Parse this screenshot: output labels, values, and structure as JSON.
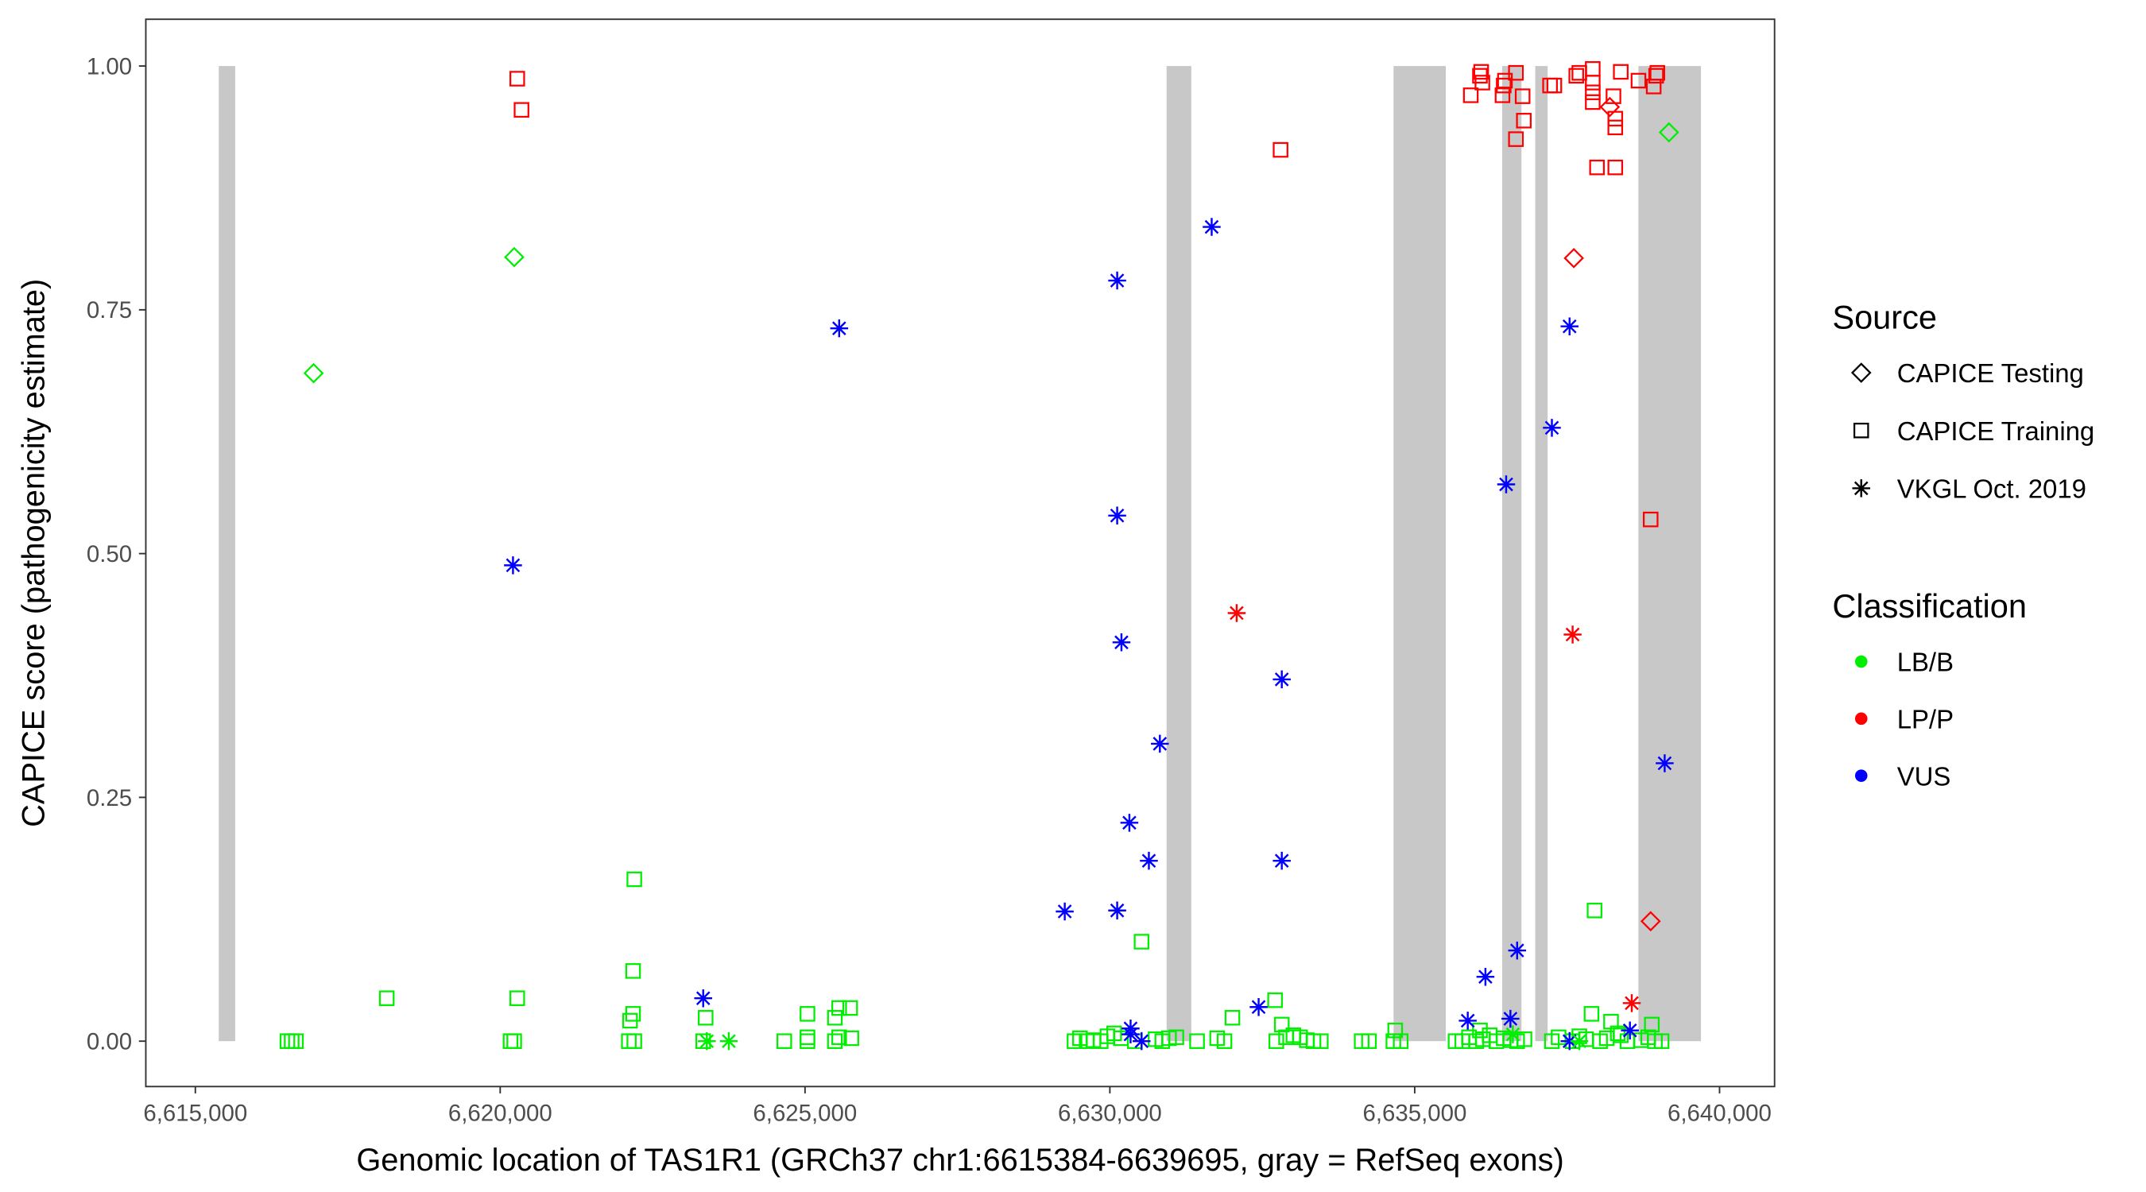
{
  "chart_data": {
    "type": "scatter",
    "xlabel": "Genomic location of TAS1R1 (GRCh37 chr1:6615384-6639695, gray = RefSeq exons)",
    "ylabel": "CAPICE score (pathogenicity estimate)",
    "xlim": [
      6614200,
      6640900
    ],
    "ylim": [
      -0.045,
      1.05
    ],
    "x_ticks": [
      6615000,
      6620000,
      6625000,
      6630000,
      6635000,
      6640000
    ],
    "x_tick_labels": [
      "6,615,000",
      "6,620,000",
      "6,625,000",
      "6,630,000",
      "6,635,000",
      "6,640,000"
    ],
    "y_ticks": [
      0,
      0.25,
      0.5,
      0.75,
      1.0
    ],
    "y_tick_labels": [
      "0.00",
      "0.25",
      "0.50",
      "0.75",
      "1.00"
    ],
    "grid": false,
    "exons": [
      [
        6615384,
        6615654
      ],
      [
        6630930,
        6631336
      ],
      [
        6634653,
        6635510
      ],
      [
        6636435,
        6636751
      ],
      [
        6636977,
        6637180
      ],
      [
        6638669,
        6639695
      ]
    ],
    "exon_color": "#c8c8c8",
    "legend": {
      "placement": "right",
      "source_title": "Source",
      "sources": [
        {
          "label": "CAPICE Testing",
          "shape": "diamond"
        },
        {
          "label": "CAPICE Training",
          "shape": "square"
        },
        {
          "label": "VKGL Oct. 2019",
          "shape": "asterisk"
        }
      ],
      "classification_title": "Classification",
      "classifications": [
        {
          "label": "LB/B",
          "color": "#00ee00"
        },
        {
          "label": "LP/P",
          "color": "#ff0000"
        },
        {
          "label": "VUS",
          "color": "#0000ff"
        }
      ]
    },
    "series": [
      {
        "source": "CAPICE Testing",
        "classification": "LB/B",
        "x": [
          6616940,
          6620230,
          6639170
        ],
        "y": [
          0.685,
          0.804,
          0.932
        ]
      },
      {
        "source": "CAPICE Testing",
        "classification": "LP/P",
        "x": [
          6638200,
          6637610,
          6638870
        ],
        "y": [
          0.958,
          0.803,
          0.123
        ]
      },
      {
        "source": "CAPICE Training",
        "classification": "LP/P",
        "x": [
          6620280,
          6620350,
          6632800,
          6635920,
          6636070,
          6636090,
          6636110,
          6636440,
          6636460,
          6636480,
          6636660,
          6636770,
          6636790,
          6636660,
          6637220,
          6637290,
          6637650,
          6637700,
          6637920,
          6637920,
          6637920,
          6637920,
          6638260,
          6638290,
          6638290,
          6637990,
          6638290,
          6638380,
          6638670,
          6638980,
          6638960,
          6638920,
          6638870
        ],
        "y": [
          0.987,
          0.955,
          0.914,
          0.97,
          0.99,
          0.994,
          0.983,
          0.97,
          0.98,
          0.985,
          0.993,
          0.969,
          0.944,
          0.925,
          0.98,
          0.98,
          0.99,
          0.993,
          0.997,
          0.983,
          0.973,
          0.963,
          0.969,
          0.946,
          0.937,
          0.896,
          0.896,
          0.994,
          0.985,
          0.993,
          0.99,
          0.979,
          0.535
        ]
      },
      {
        "source": "CAPICE Training",
        "classification": "LB/B",
        "x": [
          6616510,
          6616580,
          6616650,
          6618140,
          6620280,
          6620170,
          6620230,
          6622200,
          6622180,
          6622180,
          6622130,
          6622110,
          6622200,
          6623370,
          6623330,
          6624660,
          6625040,
          6625040,
          6625040,
          6625490,
          6625560,
          6625740,
          6625490,
          6625560,
          6625760,
          6630520,
          6632010,
          6632710,
          6632820,
          6629420,
          6629510,
          6629620,
          6629730,
          6629850,
          6629960,
          6630070,
          6630180,
          6630410,
          6630750,
          6630860,
          6630970,
          6631090,
          6631430,
          6631760,
          6631880,
          6632730,
          6632890,
          6633010,
          6633120,
          6633230,
          6633340,
          6633460,
          6634130,
          6634250,
          6634650,
          6634770,
          6634680,
          6637950,
          6637900,
          6638220,
          6638890,
          6636070,
          6638330,
          6635670,
          6635780,
          6635890,
          6636010,
          6636120,
          6636230,
          6636340,
          6636460,
          6636570,
          6636680,
          6636800,
          6637250,
          6637360,
          6637590,
          6637700,
          6637810,
          6638040,
          6638150,
          6638380,
          6638490,
          6638710,
          6638830,
          6638940,
          6639050
        ],
        "y": [
          0,
          0,
          0,
          0.044,
          0.044,
          0,
          0,
          0.166,
          0.072,
          0.028,
          0.021,
          0,
          0,
          0.024,
          0,
          0,
          0.028,
          0.004,
          0,
          0.024,
          0.034,
          0.034,
          0,
          0.004,
          0.003,
          0.102,
          0.024,
          0.042,
          0.017,
          0,
          0.003,
          0,
          0.001,
          0,
          0.005,
          0.008,
          0.003,
          0,
          0.002,
          0,
          0.003,
          0.004,
          0,
          0.003,
          0,
          0,
          0.004,
          0.006,
          0.004,
          0.001,
          0,
          0,
          0,
          0,
          0,
          0,
          0.011,
          0.134,
          0.028,
          0.02,
          0.017,
          0.011,
          0.008,
          0,
          0,
          0.004,
          0,
          0.002,
          0.006,
          0,
          0.003,
          0.001,
          0,
          0.002,
          0,
          0.004,
          0,
          0.005,
          0.002,
          0,
          0.003,
          0.006,
          0,
          0.001,
          0.004,
          0,
          0
        ]
      },
      {
        "source": "VKGL Oct. 2019",
        "classification": "VUS",
        "x": [
          6620210,
          6623330,
          6625560,
          6630120,
          6630120,
          6630190,
          6630820,
          6630320,
          6630640,
          6629260,
          6630120,
          6631670,
          6632820,
          6632820,
          6632440,
          6630340,
          6630340,
          6630520,
          6637540,
          6637250,
          6636500,
          6639100,
          6636680,
          6636160,
          6635870,
          6636570,
          6637540,
          6638530
        ],
        "y": [
          0.488,
          0.044,
          0.731,
          0.78,
          0.539,
          0.409,
          0.305,
          0.224,
          0.185,
          0.133,
          0.134,
          0.835,
          0.371,
          0.185,
          0.035,
          0.013,
          0.007,
          0,
          0.733,
          0.629,
          0.571,
          0.285,
          0.093,
          0.066,
          0.021,
          0.023,
          0,
          0.011
        ]
      },
      {
        "source": "VKGL Oct. 2019",
        "classification": "LP/P",
        "x": [
          6632080,
          6637590,
          6638560
        ],
        "y": [
          0.439,
          0.417,
          0.039
        ]
      },
      {
        "source": "VKGL Oct. 2019",
        "classification": "LB/B",
        "x": [
          6623390,
          6623750,
          6636610,
          6637700
        ],
        "y": [
          0,
          0,
          0.007,
          0
        ]
      }
    ]
  }
}
